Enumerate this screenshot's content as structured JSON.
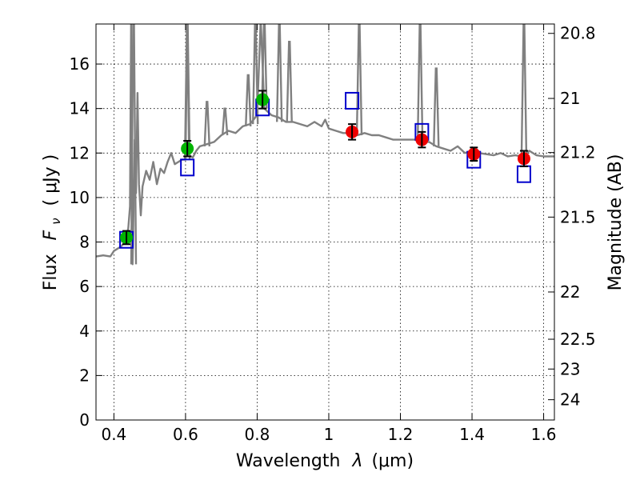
{
  "chart_data": {
    "type": "scatter",
    "title": "",
    "xlabel_main": "Wavelength",
    "xlabel_symbol": "λ",
    "xlabel_unit": "(μm)",
    "ylabel_main": "Flux",
    "ylabel_symbol": "F",
    "ylabel_subscript": "ν",
    "ylabel_unit": "( μJy )",
    "y2label": "Magnitude (AB)",
    "xlim": [
      0.35,
      1.63
    ],
    "ylim": [
      0,
      17.8
    ],
    "grid": true,
    "x_ticks": [
      0.4,
      0.6,
      0.8,
      1.0,
      1.2,
      1.4,
      1.6
    ],
    "x_tick_labels": [
      "0.4",
      "0.6",
      "0.8",
      "1",
      "1.2",
      "1.4",
      "1.6"
    ],
    "y_ticks": [
      0,
      2,
      4,
      6,
      8,
      10,
      12,
      14,
      16
    ],
    "y_tick_labels": [
      "0",
      "2",
      "4",
      "6",
      "8",
      "10",
      "12",
      "14",
      "16"
    ],
    "y2_ticks_mag": [
      20.8,
      21,
      21.2,
      21.5,
      22,
      22.5,
      23,
      24
    ],
    "y2_tick_labels": [
      "20.8",
      "21",
      "21.2",
      "21.5",
      "22",
      "22.5",
      "23",
      "24"
    ],
    "colors": {
      "spectrum": "#808080",
      "green": "#00b400",
      "red": "#ee0000",
      "model": "#0000cc",
      "error": "#000000"
    },
    "series": [
      {
        "name": "photometry-optical",
        "marker": "circle",
        "color": "green",
        "x": [
          0.435,
          0.605,
          0.815
        ],
        "y": [
          8.2,
          12.2,
          14.4
        ],
        "yerr": [
          0.3,
          0.35,
          0.4
        ]
      },
      {
        "name": "photometry-nir",
        "marker": "circle",
        "color": "red",
        "x": [
          1.065,
          1.26,
          1.405,
          1.545
        ],
        "y": [
          12.95,
          12.6,
          11.95,
          11.75
        ],
        "yerr": [
          0.35,
          0.35,
          0.3,
          0.35
        ]
      },
      {
        "name": "model-synthetic-photometry",
        "marker": "square",
        "color": "model",
        "x": [
          0.435,
          0.605,
          0.815,
          1.065,
          1.26,
          1.405,
          1.545
        ],
        "y": [
          8.1,
          11.35,
          14.05,
          14.35,
          12.95,
          11.7,
          11.05
        ]
      },
      {
        "name": "template-spectrum",
        "marker": "line",
        "color": "spectrum",
        "x": [
          0.35,
          0.37,
          0.39,
          0.4,
          0.42,
          0.43,
          0.44,
          0.445,
          0.448,
          0.452,
          0.455,
          0.458,
          0.462,
          0.466,
          0.47,
          0.475,
          0.48,
          0.49,
          0.5,
          0.51,
          0.52,
          0.53,
          0.54,
          0.55,
          0.56,
          0.57,
          0.58,
          0.59,
          0.6,
          0.605,
          0.61,
          0.62,
          0.63,
          0.64,
          0.66,
          0.68,
          0.7,
          0.72,
          0.74,
          0.76,
          0.78,
          0.8,
          0.81,
          0.82,
          0.84,
          0.86,
          0.88,
          0.9,
          0.92,
          0.94,
          0.96,
          0.98,
          0.99,
          1.0,
          1.02,
          1.04,
          1.06,
          1.08,
          1.1,
          1.12,
          1.14,
          1.16,
          1.18,
          1.2,
          1.22,
          1.24,
          1.26,
          1.28,
          1.3,
          1.32,
          1.34,
          1.36,
          1.38,
          1.4,
          1.42,
          1.44,
          1.46,
          1.48,
          1.5,
          1.52,
          1.54,
          1.56,
          1.58,
          1.6,
          1.63
        ],
        "y": [
          7.35,
          7.4,
          7.35,
          7.6,
          7.8,
          8.0,
          8.6,
          9.6,
          18.0,
          7.0,
          9.6,
          12.6,
          10.2,
          14.7,
          10.6,
          9.2,
          10.5,
          11.2,
          10.8,
          11.6,
          10.6,
          11.3,
          11.1,
          11.6,
          12.0,
          11.5,
          11.6,
          11.7,
          11.7,
          18.0,
          11.9,
          11.8,
          12.1,
          12.3,
          12.4,
          12.5,
          12.8,
          13.0,
          12.9,
          13.2,
          13.3,
          13.7,
          18.0,
          14.0,
          13.7,
          13.6,
          13.4,
          13.4,
          13.3,
          13.2,
          13.4,
          13.2,
          13.5,
          13.1,
          13.0,
          12.9,
          12.9,
          12.8,
          12.9,
          12.8,
          12.8,
          12.7,
          12.6,
          12.6,
          12.6,
          12.6,
          12.5,
          12.5,
          12.3,
          12.2,
          12.1,
          12.3,
          12.0,
          12.1,
          12.0,
          11.95,
          11.9,
          12.0,
          11.85,
          11.9,
          11.85,
          12.1,
          11.9,
          11.85,
          11.85
        ]
      }
    ],
    "emission_lines": [
      {
        "x": 0.455,
        "peak": 17.8
      },
      {
        "x": 0.605,
        "peak": 17.8
      },
      {
        "x": 0.66,
        "peak": 14.3
      },
      {
        "x": 0.71,
        "peak": 14.0
      },
      {
        "x": 0.775,
        "peak": 15.5
      },
      {
        "x": 0.795,
        "peak": 17.8
      },
      {
        "x": 0.82,
        "peak": 17.8
      },
      {
        "x": 0.862,
        "peak": 17.8
      },
      {
        "x": 0.89,
        "peak": 17.0
      },
      {
        "x": 1.085,
        "peak": 17.8
      },
      {
        "x": 1.255,
        "peak": 17.8
      },
      {
        "x": 1.3,
        "peak": 15.8
      },
      {
        "x": 1.545,
        "peak": 17.8
      }
    ]
  }
}
